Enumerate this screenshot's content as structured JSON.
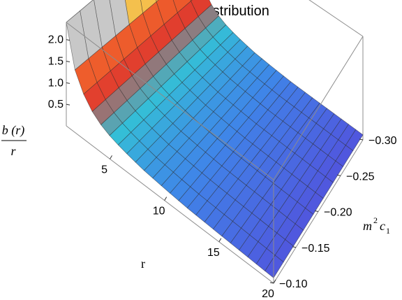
{
  "chart_data": {
    "type": "surface3d",
    "title": "Lorentzian distribution",
    "function": "b(r)/r",
    "x_axis": {
      "label": "r",
      "range": [
        1,
        20
      ],
      "ticks": [
        5,
        10,
        15,
        20
      ],
      "tick_labels": [
        "5",
        "10",
        "15",
        "20"
      ]
    },
    "y_axis": {
      "label": "m² c₁",
      "label_parts": {
        "m": "m",
        "sup": "2",
        "c": "c",
        "sub": "1"
      },
      "range": [
        -0.3,
        -0.1
      ],
      "ticks": [
        -0.1,
        -0.15,
        -0.2,
        -0.25,
        -0.3
      ],
      "tick_labels": [
        "−0.10",
        "−0.15",
        "−0.20",
        "−0.25",
        "−0.30"
      ]
    },
    "z_axis": {
      "label_numerator": "b (r)",
      "label_denominator": "r",
      "range": [
        0,
        2.4
      ],
      "ticks": [
        0.5,
        1.0,
        1.5,
        2.0
      ],
      "tick_labels": [
        "0.5",
        "1.0",
        "1.5",
        "2.0"
      ]
    },
    "surface_model": {
      "description": "z decreases steeply with r, nearly independent of m²c₁",
      "r_samples": [
        1,
        1.5,
        2,
        3,
        4,
        5,
        6,
        8,
        10,
        12,
        15,
        17.5,
        20
      ],
      "z_values": [
        2.4,
        1.65,
        1.25,
        0.85,
        0.64,
        0.52,
        0.44,
        0.33,
        0.27,
        0.22,
        0.18,
        0.15,
        0.12
      ]
    },
    "colormap": [
      "#f2e88a",
      "#f5b841",
      "#f0622c",
      "#e03c2e",
      "#34c0d6",
      "#3f86e8",
      "#5a3cd8",
      "#7b2fc9"
    ],
    "clip_color": "#c8c8c8",
    "box": true,
    "mesh": true
  }
}
